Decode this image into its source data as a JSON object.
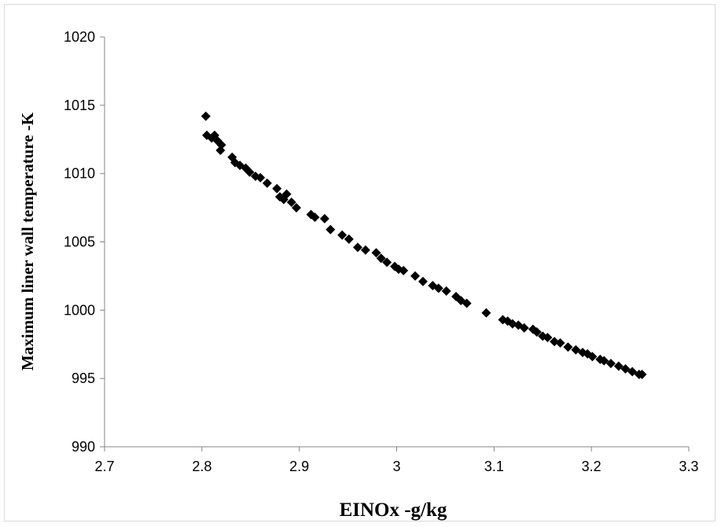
{
  "chart_data": {
    "type": "scatter",
    "xlabel": "EINOx -g/kg",
    "ylabel": "Maximum liner wall temperature -K",
    "xlim": [
      2.7,
      3.3
    ],
    "ylim": [
      990,
      1020
    ],
    "xticks": [
      "2.7",
      "2.8",
      "2.9",
      "3",
      "3.1",
      "3.2",
      "3.3"
    ],
    "yticks": [
      "990",
      "995",
      "1000",
      "1005",
      "1010",
      "1015",
      "1020"
    ],
    "grid": false,
    "legend": "none",
    "marker": "diamond",
    "marker_color": "#000000",
    "series": [
      {
        "points": [
          [
            2.804,
            1014.2
          ],
          [
            2.805,
            1012.8
          ],
          [
            2.81,
            1012.6
          ],
          [
            2.813,
            1012.8
          ],
          [
            2.816,
            1012.4
          ],
          [
            2.819,
            1011.7
          ],
          [
            2.82,
            1012.1
          ],
          [
            2.831,
            1011.2
          ],
          [
            2.834,
            1010.8
          ],
          [
            2.839,
            1010.6
          ],
          [
            2.845,
            1010.4
          ],
          [
            2.849,
            1010.1
          ],
          [
            2.855,
            1009.8
          ],
          [
            2.86,
            1009.7
          ],
          [
            2.867,
            1009.3
          ],
          [
            2.877,
            1008.9
          ],
          [
            2.88,
            1008.3
          ],
          [
            2.884,
            1008.1
          ],
          [
            2.887,
            1008.5
          ],
          [
            2.892,
            1007.9
          ],
          [
            2.897,
            1007.5
          ],
          [
            2.912,
            1007.0
          ],
          [
            2.916,
            1006.8
          ],
          [
            2.926,
            1006.7
          ],
          [
            2.932,
            1005.9
          ],
          [
            2.944,
            1005.5
          ],
          [
            2.951,
            1005.2
          ],
          [
            2.96,
            1004.6
          ],
          [
            2.968,
            1004.4
          ],
          [
            2.979,
            1004.2
          ],
          [
            2.984,
            1003.8
          ],
          [
            2.99,
            1003.5
          ],
          [
            2.998,
            1003.2
          ],
          [
            3.002,
            1003.0
          ],
          [
            3.007,
            1002.9
          ],
          [
            3.019,
            1002.5
          ],
          [
            3.027,
            1002.1
          ],
          [
            3.037,
            1001.8
          ],
          [
            3.043,
            1001.6
          ],
          [
            3.051,
            1001.4
          ],
          [
            3.061,
            1001.0
          ],
          [
            3.066,
            1000.7
          ],
          [
            3.072,
            1000.5
          ],
          [
            3.092,
            999.8
          ],
          [
            3.109,
            999.3
          ],
          [
            3.114,
            999.2
          ],
          [
            3.119,
            999.0
          ],
          [
            3.125,
            998.9
          ],
          [
            3.131,
            998.7
          ],
          [
            3.14,
            998.6
          ],
          [
            3.144,
            998.4
          ],
          [
            3.15,
            998.1
          ],
          [
            3.155,
            998.0
          ],
          [
            3.162,
            997.7
          ],
          [
            3.168,
            997.6
          ],
          [
            3.176,
            997.3
          ],
          [
            3.184,
            997.1
          ],
          [
            3.191,
            996.9
          ],
          [
            3.196,
            996.8
          ],
          [
            3.201,
            996.6
          ],
          [
            3.209,
            996.4
          ],
          [
            3.213,
            996.3
          ],
          [
            3.22,
            996.1
          ],
          [
            3.228,
            995.9
          ],
          [
            3.235,
            995.7
          ],
          [
            3.242,
            995.5
          ],
          [
            3.249,
            995.3
          ],
          [
            3.252,
            995.3
          ]
        ]
      }
    ]
  }
}
